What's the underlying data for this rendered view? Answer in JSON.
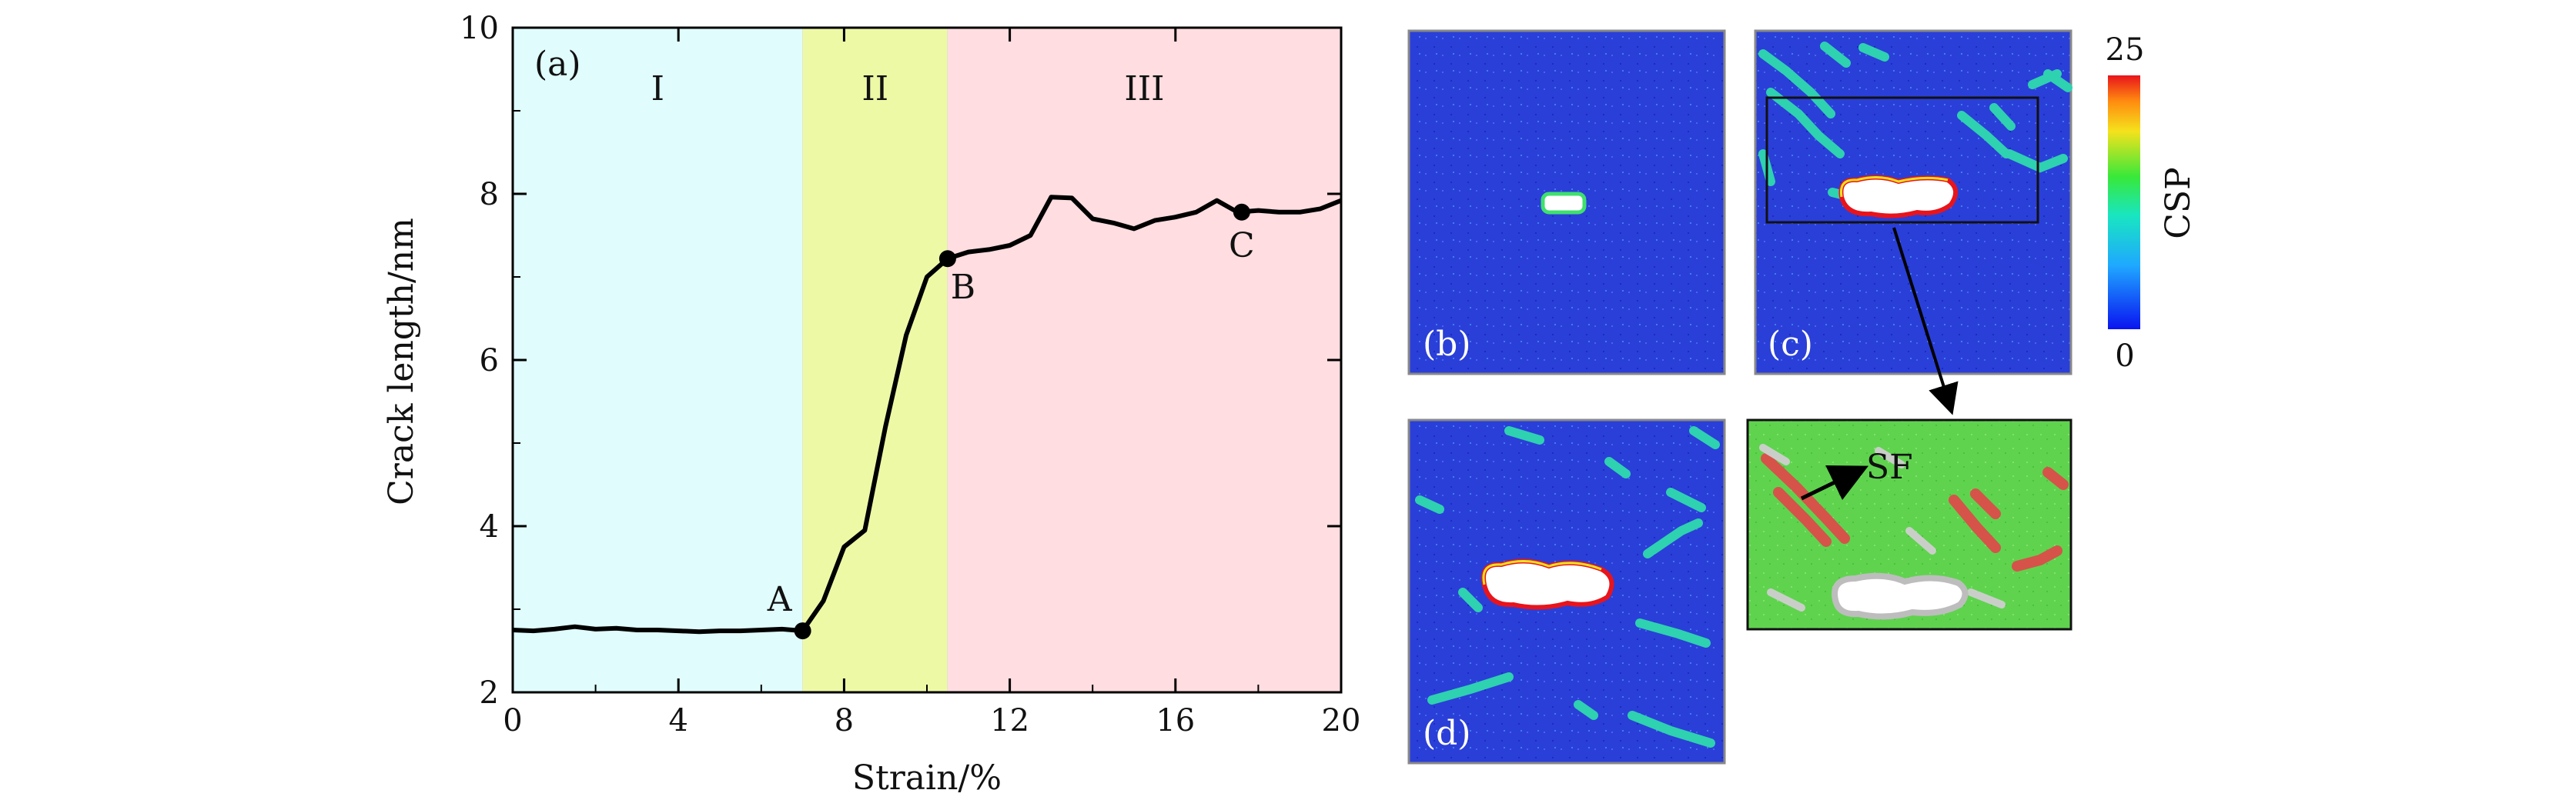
{
  "chart_data": {
    "type": "line",
    "panel_label": "(a)",
    "xlabel": "Strain/%",
    "ylabel": "Crack length/nm",
    "xlim": [
      0,
      20
    ],
    "ylim": [
      2,
      10
    ],
    "xticks": [
      "0",
      "4",
      "8",
      "12",
      "16",
      "20"
    ],
    "yticks": [
      "2",
      "4",
      "6",
      "8",
      "10"
    ],
    "regions": [
      {
        "label": "I",
        "x_start": 0,
        "x_end": 7.0,
        "color": "#e0fcfd"
      },
      {
        "label": "II",
        "x_start": 7.0,
        "x_end": 10.5,
        "color": "#eef9a6"
      },
      {
        "label": "III",
        "x_start": 10.5,
        "x_end": 20,
        "color": "#ffdde0"
      }
    ],
    "series": [
      {
        "x": [
          0,
          0.5,
          1.0,
          1.5,
          2.0,
          2.5,
          3.0,
          3.5,
          4.0,
          4.5,
          5.0,
          5.5,
          6.0,
          6.5,
          7.0,
          7.5,
          8.0,
          8.5,
          9.0,
          9.5,
          10.0,
          10.5,
          11.0,
          11.5,
          12.0,
          12.5,
          13.0,
          13.5,
          14.0,
          14.5,
          15.0,
          15.5,
          16.0,
          16.5,
          17.0,
          17.5,
          18.0,
          18.5,
          19.0,
          19.5,
          20.0
        ],
        "y": [
          2.75,
          2.74,
          2.76,
          2.79,
          2.76,
          2.77,
          2.75,
          2.75,
          2.74,
          2.73,
          2.74,
          2.74,
          2.75,
          2.76,
          2.74,
          3.1,
          3.75,
          3.95,
          5.2,
          6.3,
          7.0,
          7.22,
          7.3,
          7.33,
          7.38,
          7.5,
          7.96,
          7.95,
          7.7,
          7.65,
          7.58,
          7.68,
          7.72,
          7.78,
          7.92,
          7.78,
          7.8,
          7.78,
          7.78,
          7.82,
          7.92
        ],
        "color": "#000000"
      }
    ],
    "points": [
      {
        "label": "A",
        "x": 7.0,
        "y": 2.74
      },
      {
        "label": "B",
        "x": 10.5,
        "y": 7.22
      },
      {
        "label": "C",
        "x": 17.6,
        "y": 7.78
      }
    ]
  },
  "snapshots": {
    "b_label": "(b)",
    "c_label": "(c)",
    "d_label": "(d)",
    "zoom_sf_label": "SF",
    "colorbar": {
      "title": "CSP",
      "max": "25",
      "min": "0"
    }
  }
}
